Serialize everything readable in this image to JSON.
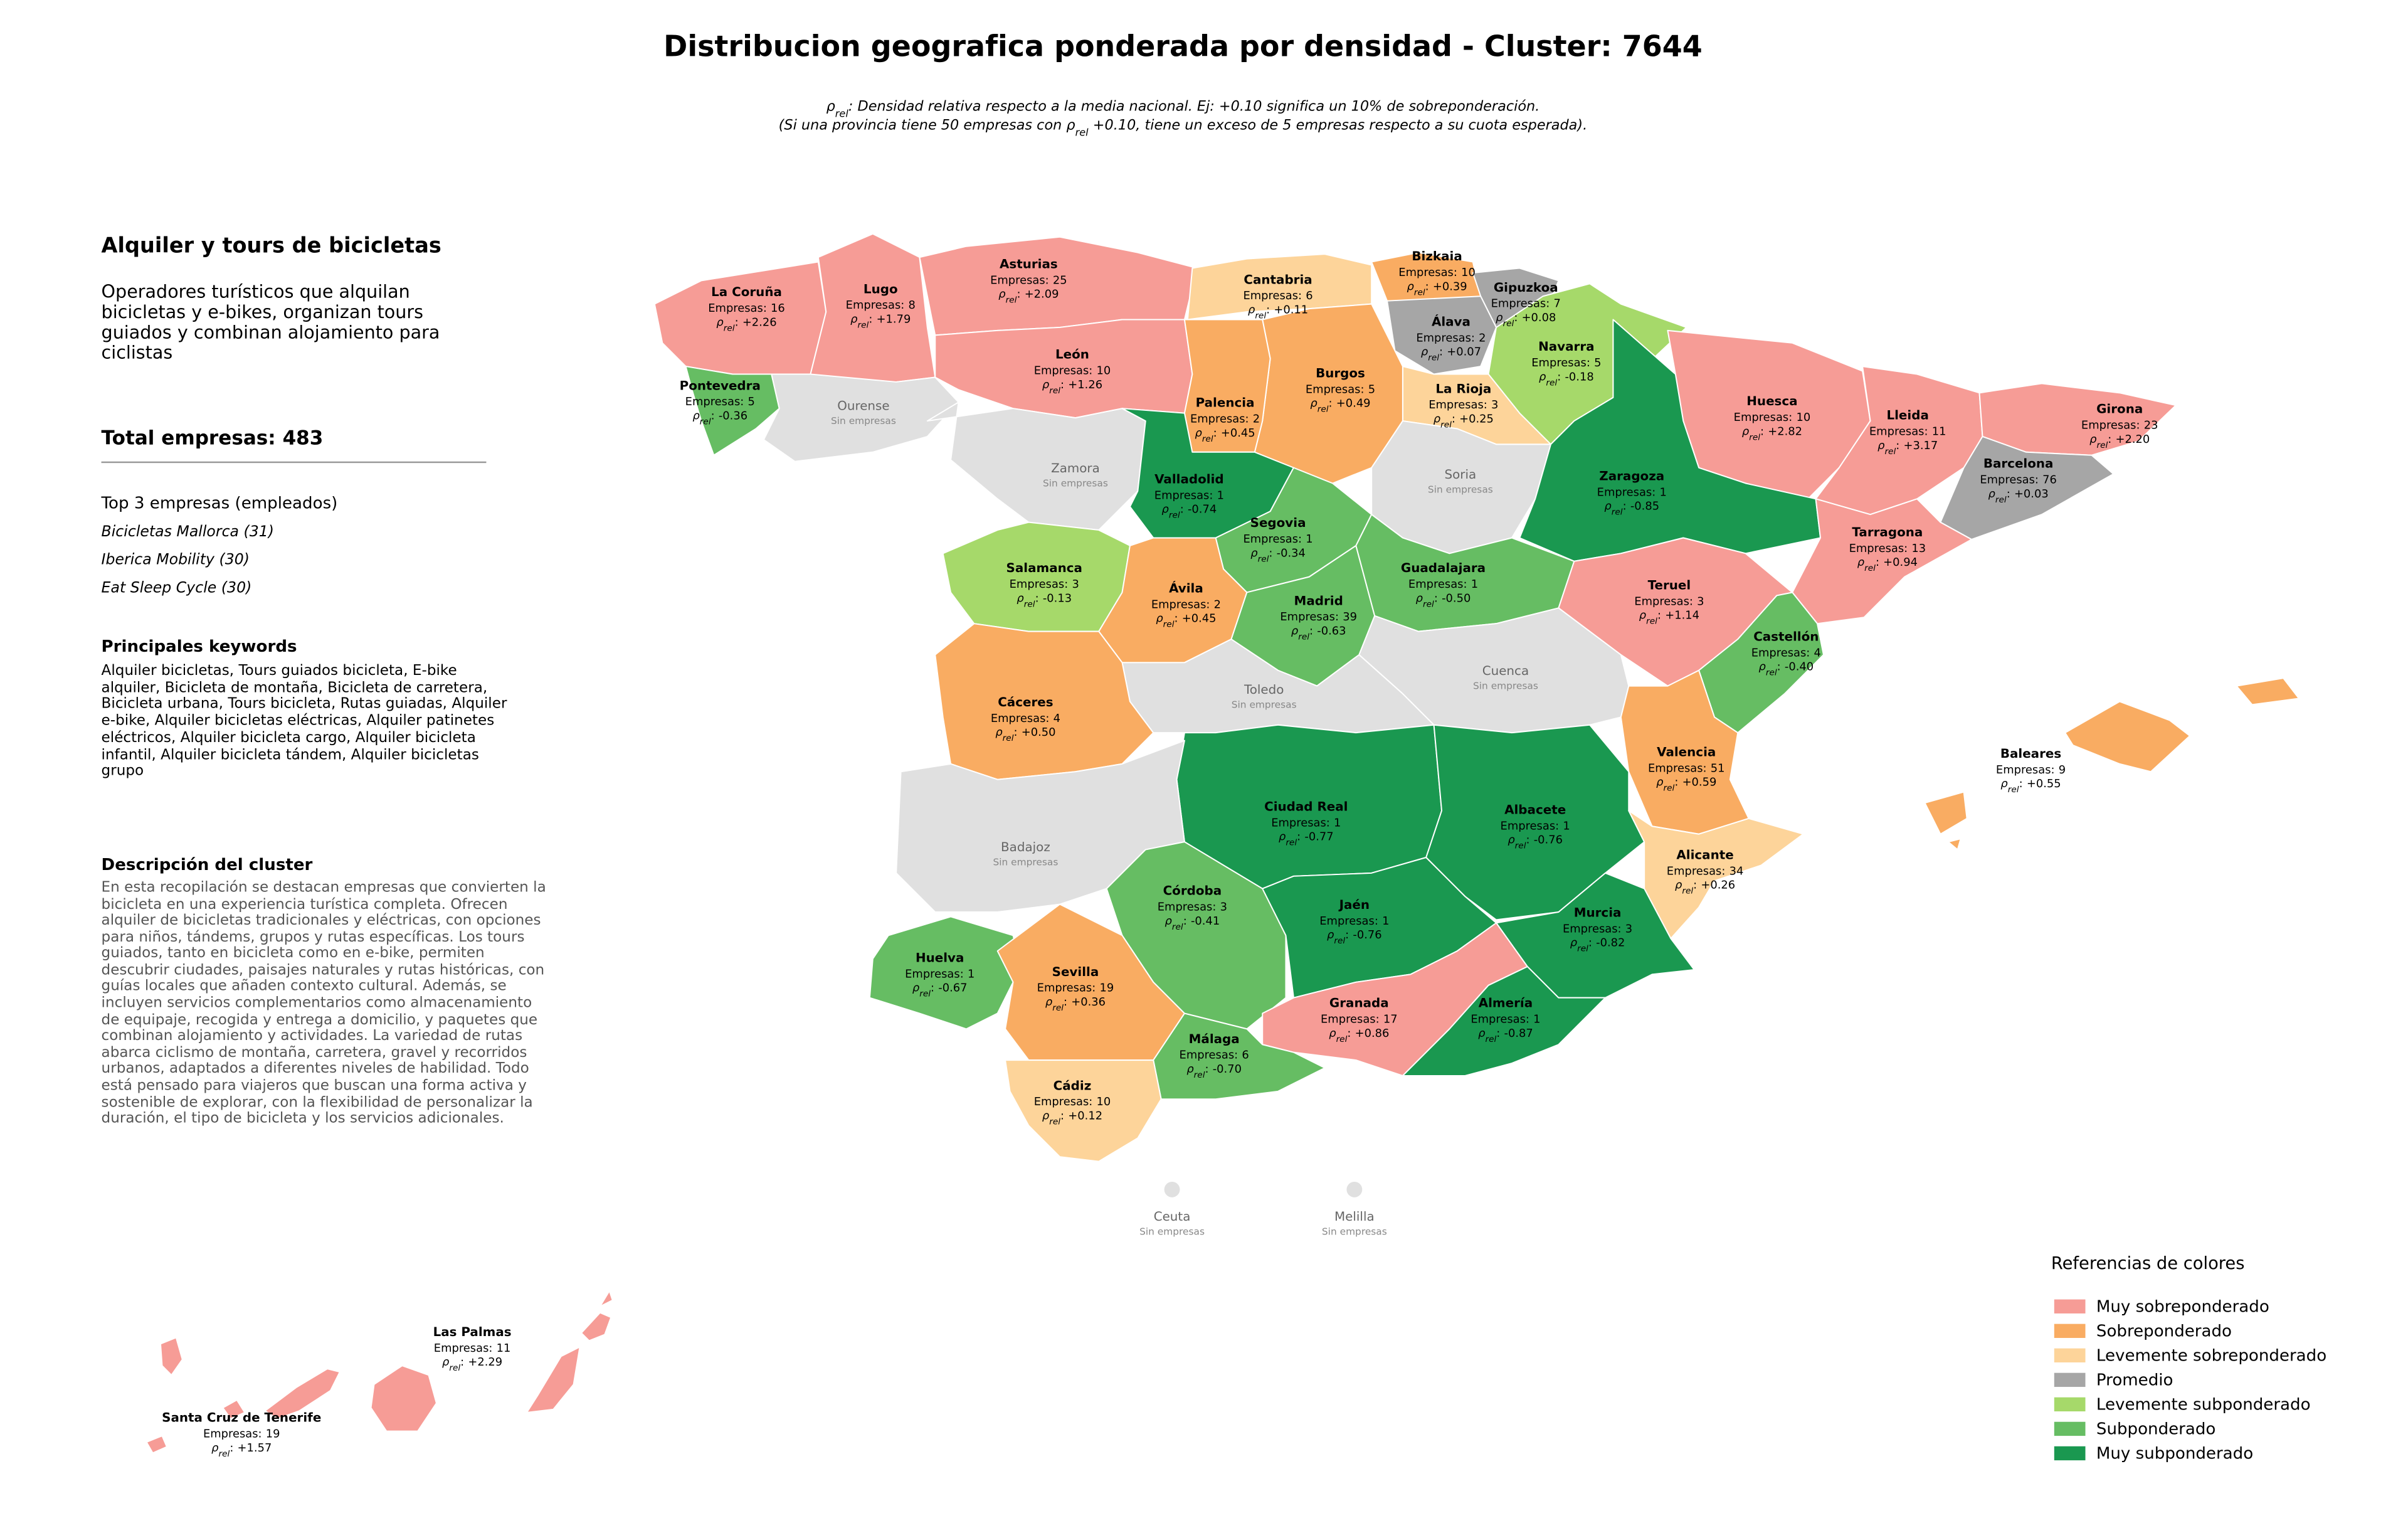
{
  "title": "Distribucion geografica ponderada por densidad - Cluster: 7644",
  "note": {
    "rho_symbol": "ρ",
    "rho_sub": "rel",
    "line1": ": Densidad relativa respecto a la media nacional. Ej: +0.10 significa un 10% de sobreponderación.",
    "line2_start": "(Si una provincia tiene 50 empresas con ",
    "line2_end": " +0.10, tiene un exceso de 5 empresas respecto a su cuota esperada)."
  },
  "sidebar": {
    "heading": "Alquiler y tours de bicicletas",
    "summary": "Operadores turísticos que alquilan bicicletas y e-bikes, organizan tours guiados y combinan alojamiento para ciclistas",
    "total_label": "Total empresas:",
    "total": 483,
    "top_title": "Top 3 empresas (empleados)",
    "top_companies": [
      "Bicicletas Mallorca (31)",
      "Iberica Mobility (30)",
      "Eat Sleep Cycle (30)"
    ],
    "keywords_title": "Principales keywords",
    "keywords": "Alquiler bicicletas, Tours guiados bicicleta, E-bike alquiler, Bicicleta de montaña, Bicicleta de carretera, Bicicleta urbana, Tours bicicleta, Rutas guiadas, Alquiler e-bike, Alquiler bicicletas eléctricas, Alquiler patinetes eléctricos, Alquiler bicicleta cargo, Alquiler bicicleta infantil, Alquiler bicicleta tándem, Alquiler bicicletas grupo",
    "cluster_title": "Descripción del cluster",
    "cluster_text": "En esta recopilación se destacan empresas que convierten la bicicleta en una experiencia turística completa. Ofrecen alquiler de bicicletas tradicionales y eléctricas, con opciones para niños, tándems, grupos y rutas específicas. Los tours guiados, tanto en bicicleta como en e-bike, permiten descubrir ciudades, paisajes naturales y rutas históricas, con guías locales que añaden contexto cultural. Además, se incluyen servicios complementarios como almacenamiento de equipaje, recogida y entrega a domicilio, y paquetes que combinan alojamiento y actividades. La variedad de rutas abarca ciclismo de montaña, carretera, gravel y recorridos urbanos, adaptados a diferentes niveles de habilidad. Todo está pensado para viajeros que buscan una forma activa y sostenible de explorar, con la flexibilidad de personalizar la duración, el tipo de bicicleta y los servicios adicionales."
  },
  "map": {
    "empresas_label": "Empresas:",
    "rho_symbol": "ρ",
    "rho_sub": "rel",
    "rho_suffix": ":",
    "no_data": "Sin empresas",
    "no_data_color": "#e0e0e0",
    "provinces": [
      {
        "name": "La Coruña",
        "empresas": 16,
        "rho": "+2.26",
        "category": "Muy sobreponderado"
      },
      {
        "name": "Lugo",
        "empresas": 8,
        "rho": "+1.79",
        "category": "Muy sobreponderado"
      },
      {
        "name": "Asturias",
        "empresas": 25,
        "rho": "+2.09",
        "category": "Muy sobreponderado"
      },
      {
        "name": "Cantabria",
        "empresas": 6,
        "rho": "+0.11",
        "category": "Levemente sobreponderado"
      },
      {
        "name": "Bizkaia",
        "empresas": 10,
        "rho": "+0.39",
        "category": "Sobreponderado"
      },
      {
        "name": "Gipuzkoa",
        "empresas": 7,
        "rho": "+0.08",
        "category": "Promedio"
      },
      {
        "name": "Álava",
        "empresas": 2,
        "rho": "+0.07",
        "category": "Promedio"
      },
      {
        "name": "Navarra",
        "empresas": 5,
        "rho": "-0.18",
        "category": "Levemente subponderado"
      },
      {
        "name": "La Rioja",
        "empresas": 3,
        "rho": "+0.25",
        "category": "Levemente sobreponderado"
      },
      {
        "name": "León",
        "empresas": 10,
        "rho": "+1.26",
        "category": "Muy sobreponderado"
      },
      {
        "name": "Burgos",
        "empresas": 5,
        "rho": "+0.49",
        "category": "Sobreponderado"
      },
      {
        "name": "Palencia",
        "empresas": 2,
        "rho": "+0.45",
        "category": "Sobreponderado"
      },
      {
        "name": "Pontevedra",
        "empresas": 5,
        "rho": "-0.36",
        "category": "Subponderado"
      },
      {
        "name": "Ourense"
      },
      {
        "name": "Zamora"
      },
      {
        "name": "Valladolid",
        "empresas": 1,
        "rho": "-0.74",
        "category": "Muy subponderado"
      },
      {
        "name": "Soria"
      },
      {
        "name": "Huesca",
        "empresas": 10,
        "rho": "+2.82",
        "category": "Muy sobreponderado"
      },
      {
        "name": "Lleida",
        "empresas": 11,
        "rho": "+3.17",
        "category": "Muy sobreponderado"
      },
      {
        "name": "Girona",
        "empresas": 23,
        "rho": "+2.20",
        "category": "Muy sobreponderado"
      },
      {
        "name": "Barcelona",
        "empresas": 76,
        "rho": "+0.03",
        "category": "Promedio"
      },
      {
        "name": "Zaragoza",
        "empresas": 1,
        "rho": "-0.85",
        "category": "Muy subponderado"
      },
      {
        "name": "Tarragona",
        "empresas": 13,
        "rho": "+0.94",
        "category": "Muy sobreponderado"
      },
      {
        "name": "Segovia",
        "empresas": 1,
        "rho": "-0.34",
        "category": "Subponderado"
      },
      {
        "name": "Salamanca",
        "empresas": 3,
        "rho": "-0.13",
        "category": "Levemente subponderado"
      },
      {
        "name": "Ávila",
        "empresas": 2,
        "rho": "+0.45",
        "category": "Sobreponderado"
      },
      {
        "name": "Madrid",
        "empresas": 39,
        "rho": "-0.63",
        "category": "Subponderado"
      },
      {
        "name": "Guadalajara",
        "empresas": 1,
        "rho": "-0.50",
        "category": "Subponderado"
      },
      {
        "name": "Teruel",
        "empresas": 3,
        "rho": "+1.14",
        "category": "Muy sobreponderado"
      },
      {
        "name": "Castellón",
        "empresas": 4,
        "rho": "-0.40",
        "category": "Subponderado"
      },
      {
        "name": "Cuenca"
      },
      {
        "name": "Toledo"
      },
      {
        "name": "Cáceres",
        "empresas": 4,
        "rho": "+0.50",
        "category": "Sobreponderado"
      },
      {
        "name": "Valencia",
        "empresas": 51,
        "rho": "+0.59",
        "category": "Sobreponderado"
      },
      {
        "name": "Baleares",
        "empresas": 9,
        "rho": "+0.55",
        "category": "Sobreponderado"
      },
      {
        "name": "Ciudad Real",
        "empresas": 1,
        "rho": "-0.77",
        "category": "Muy subponderado"
      },
      {
        "name": "Albacete",
        "empresas": 1,
        "rho": "-0.76",
        "category": "Muy subponderado"
      },
      {
        "name": "Badajoz"
      },
      {
        "name": "Alicante",
        "empresas": 34,
        "rho": "+0.26",
        "category": "Levemente sobreponderado"
      },
      {
        "name": "Córdoba",
        "empresas": 3,
        "rho": "-0.41",
        "category": "Subponderado"
      },
      {
        "name": "Jaén",
        "empresas": 1,
        "rho": "-0.76",
        "category": "Muy subponderado"
      },
      {
        "name": "Murcia",
        "empresas": 3,
        "rho": "-0.82",
        "category": "Muy subponderado"
      },
      {
        "name": "Huelva",
        "empresas": 1,
        "rho": "-0.67",
        "category": "Subponderado"
      },
      {
        "name": "Sevilla",
        "empresas": 19,
        "rho": "+0.36",
        "category": "Sobreponderado"
      },
      {
        "name": "Granada",
        "empresas": 17,
        "rho": "+0.86",
        "category": "Muy sobreponderado"
      },
      {
        "name": "Almería",
        "empresas": 1,
        "rho": "-0.87",
        "category": "Muy subponderado"
      },
      {
        "name": "Málaga",
        "empresas": 6,
        "rho": "-0.70",
        "category": "Subponderado"
      },
      {
        "name": "Cádiz",
        "empresas": 10,
        "rho": "+0.12",
        "category": "Levemente sobreponderado"
      },
      {
        "name": "Ceuta"
      },
      {
        "name": "Melilla"
      },
      {
        "name": "Las Palmas",
        "empresas": 11,
        "rho": "+2.29",
        "category": "Muy sobreponderado"
      },
      {
        "name": "Santa Cruz de Tenerife",
        "empresas": 19,
        "rho": "+1.57",
        "category": "Muy sobreponderado"
      }
    ]
  },
  "legend": {
    "title": "Referencias de colores",
    "items": [
      {
        "label": "Muy sobreponderado",
        "color": "#f69c96"
      },
      {
        "label": "Sobreponderado",
        "color": "#f9ac62"
      },
      {
        "label": "Levemente sobreponderado",
        "color": "#fdd49a"
      },
      {
        "label": "Promedio",
        "color": "#a6a6a6"
      },
      {
        "label": "Levemente subponderado",
        "color": "#a6d96a"
      },
      {
        "label": "Subponderado",
        "color": "#66bd63"
      },
      {
        "label": "Muy subponderado",
        "color": "#1a9850"
      }
    ]
  }
}
